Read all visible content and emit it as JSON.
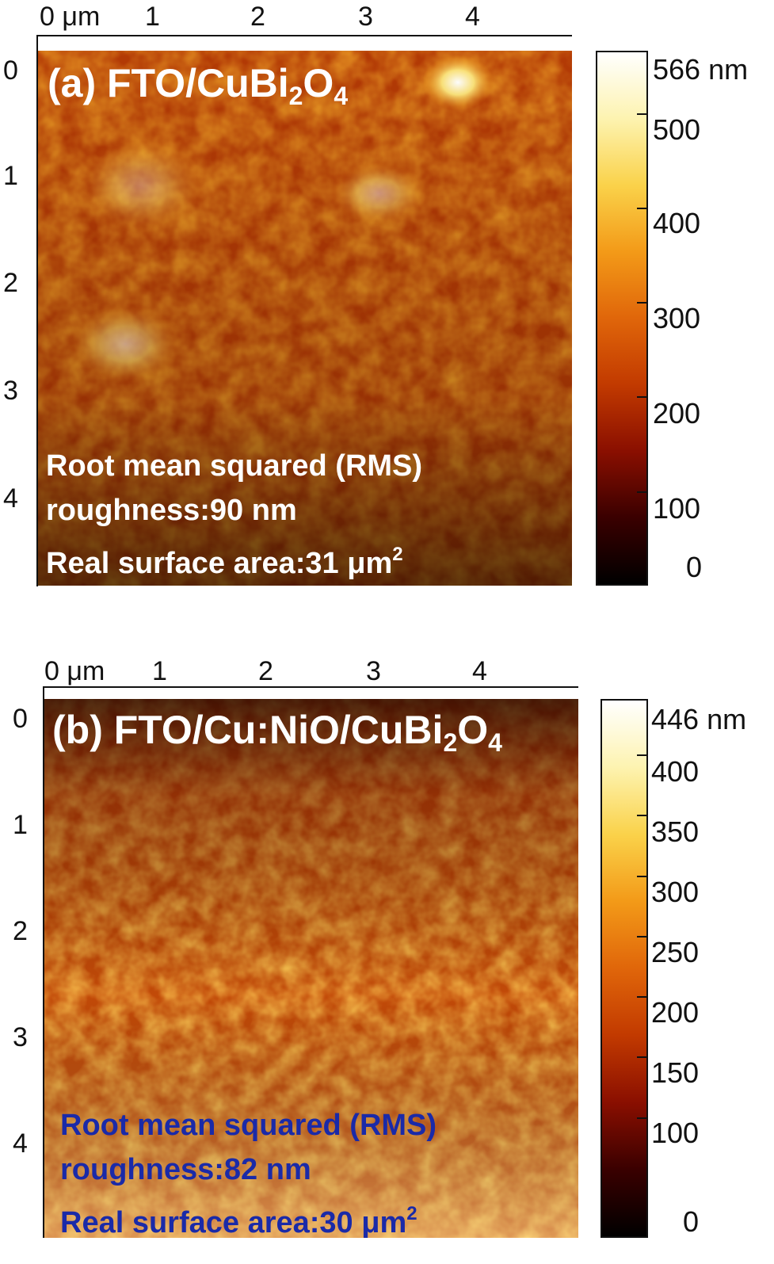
{
  "colors": {
    "afm_colormap": [
      "#000000",
      "#3a0000",
      "#8a0f00",
      "#c23a00",
      "#e0660a",
      "#f39a18",
      "#fad24a",
      "#fdf3b0",
      "#ffffff"
    ],
    "stats_a_color": "#ffffff",
    "stats_b_color": "#1a2aa8"
  },
  "panels": [
    {
      "id": "a",
      "title": {
        "main": "(a) FTO/CuBi",
        "sub1": "2",
        "mid": "O",
        "sub2": "4"
      },
      "x_ticks": [
        "0 μm",
        "1",
        "2",
        "3",
        "4"
      ],
      "y_ticks": [
        "0",
        "1",
        "2",
        "3",
        "4"
      ],
      "stats": {
        "line1": "Root mean squared (RMS)",
        "line2": "roughness:90 nm",
        "line3": "Real surface area:31 μm",
        "line3_sup": "2"
      },
      "colorbar": {
        "max_label": "566 nm",
        "labels": [
          "500",
          "400",
          "300",
          "200",
          "100",
          "0"
        ],
        "min_nm": 0,
        "max_nm": 566
      }
    },
    {
      "id": "b",
      "title": {
        "main": "(b) FTO/Cu:NiO/CuBi",
        "sub1": "2",
        "mid": "O",
        "sub2": "4"
      },
      "x_ticks": [
        "0 μm",
        "1",
        "2",
        "3",
        "4"
      ],
      "y_ticks": [
        "0",
        "1",
        "2",
        "3",
        "4"
      ],
      "stats": {
        "line1": "Root mean squared (RMS)",
        "line2": "roughness:82 nm",
        "line3": "Real surface area:30 μm",
        "line3_sup": "2"
      },
      "colorbar": {
        "max_label": "446 nm",
        "labels": [
          "400",
          "350",
          "300",
          "250",
          "200",
          "150",
          "100",
          "0"
        ],
        "min_nm": 0,
        "max_nm": 446
      }
    }
  ]
}
